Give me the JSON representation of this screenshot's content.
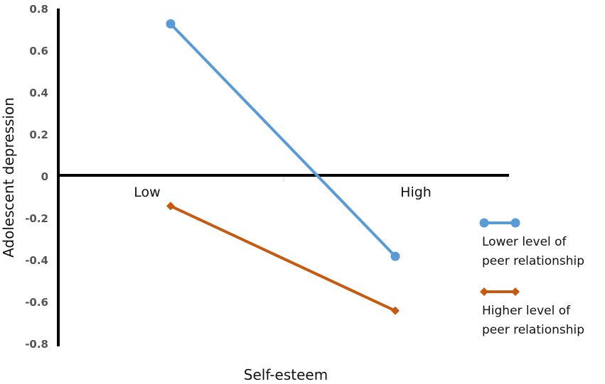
{
  "chart_data": {
    "type": "line",
    "categories": [
      "Low",
      "High"
    ],
    "series": [
      {
        "name": "Lower level of peer relationship",
        "values": [
          0.73,
          -0.38
        ],
        "color": "#5b9bd5",
        "marker": "circle"
      },
      {
        "name": "Higher level of peer relationship",
        "values": [
          -0.14,
          -0.64
        ],
        "color": "#c55a11",
        "marker": "diamond"
      }
    ],
    "xlabel": "Self-esteem",
    "ylabel": "Adolescent depression",
    "ylim": [
      -0.8,
      0.8
    ],
    "yticks": [
      "0.8",
      "0.6",
      "0.4",
      "0.2",
      "0",
      "-0.2",
      "-0.4",
      "-0.6",
      "-0.8"
    ],
    "grid": false,
    "legend_position": "right"
  }
}
